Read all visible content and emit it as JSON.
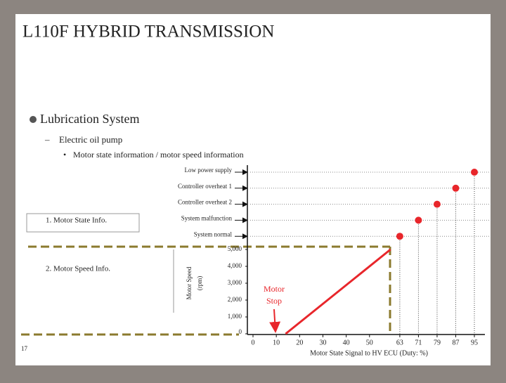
{
  "title": "L110F HYBRID TRANSMISSION",
  "bullets": {
    "level1": "Lubrication System",
    "level2": "Electric oil pump",
    "level3": "Motor state information / motor speed information"
  },
  "boxes": [
    "1. Motor State Info.",
    "2. Motor Speed Info."
  ],
  "page_number": "17",
  "chart_data": {
    "type": "line",
    "xlabel": "Motor State Signal to HV ECU (Duty: %)",
    "ylabel": [
      "Motor Speed",
      "(rpm)"
    ],
    "annotation": [
      "Motor",
      "Stop"
    ],
    "xlim": [
      0,
      95
    ],
    "xticks": [
      0,
      10,
      20,
      30,
      40,
      50,
      63,
      71,
      79,
      87,
      95
    ],
    "ylim": [
      0,
      5000
    ],
    "yticks": [
      0,
      {
        "value": 1000,
        "label": "1,000"
      },
      {
        "value": 2000,
        "label": "2,000"
      },
      {
        "value": 3000,
        "label": "3,000"
      },
      {
        "value": 4000,
        "label": "4,000"
      },
      {
        "value": 5000,
        "label": "5,000"
      }
    ],
    "states": [
      {
        "label": "Low power supply",
        "duty": 95
      },
      {
        "label": "Controller overheat 1",
        "duty": 87
      },
      {
        "label": "Controller overheat 2",
        "duty": 79
      },
      {
        "label": "System malfunction",
        "duty": 71
      },
      {
        "label": "System normal",
        "duty": 63
      }
    ],
    "series": [
      {
        "color": "#e8262b",
        "x": [
          14,
          59
        ],
        "values": [
          0,
          5000
        ]
      }
    ]
  }
}
